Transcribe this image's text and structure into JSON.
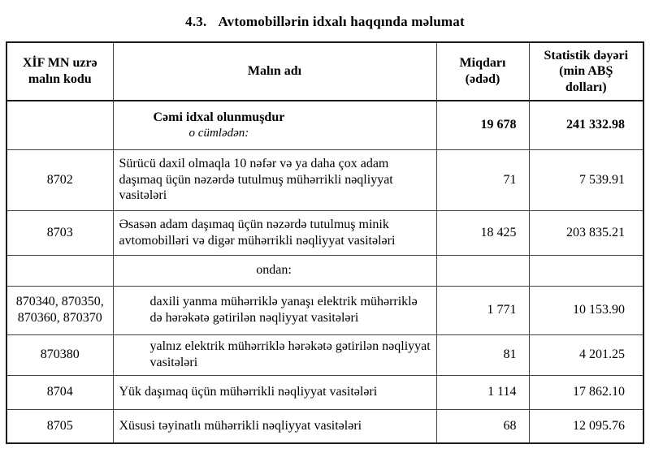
{
  "title": {
    "number": "4.3.",
    "text": "Avtomobillərin idxalı haqqında məlumat"
  },
  "colors": {
    "text": "#000000",
    "border_inner": "#434343",
    "border_outer": "#1a1a1a",
    "background": "#ffffff"
  },
  "table": {
    "headers": {
      "code": "XİF MN uzrə\nmalın kodu",
      "name": "Malın adı",
      "quantity": "Miqdarı\n(ədəd)",
      "value": "Statistik dəyəri\n(min ABŞ\ndolları)"
    },
    "rows": [
      {
        "code": "",
        "name": "Cəmi idxal olunmuşdur",
        "subname": "o cümlədən:",
        "quantity": "19 678",
        "value": "241 332.98"
      },
      {
        "code": "8702",
        "name": "Sürücü daxil olmaqla 10 nəfər və ya daha çox adam daşımaq üçün nəzərdə tutulmuş mühərrikli nəqliyyat vasitələri",
        "quantity": "71",
        "value": "7 539.91"
      },
      {
        "code": "8703",
        "name": "Əsasən adam daşımaq üçün nəzərdə tutulmuş minik avtomobilləri və digər mühərrikli nəqliyyat vasitələri",
        "quantity": "18 425",
        "value": "203 835.21"
      },
      {
        "code": "",
        "name": "ondan:",
        "quantity": "",
        "value": ""
      },
      {
        "code": "870340, 870350, 870360, 870370",
        "name": "daxili yanma mühərriklə yanaşı elektrik mühərriklə də hərəkətə gətirilən nəqliyyat vasitələri",
        "quantity": "1 771",
        "value": "10 153.90"
      },
      {
        "code": "870380",
        "name": "yalnız elektrik mühərriklə hərəkətə gətirilən nəqliyyat vasitələri",
        "quantity": "81",
        "value": "4 201.25"
      },
      {
        "code": "8704",
        "name": "Yük daşımaq üçün mühərrikli nəqliyyat vasitələri",
        "quantity": "1 114",
        "value": "17 862.10"
      },
      {
        "code": "8705",
        "name": "Xüsusi təyinatlı mühərrikli nəqliyyat vasitələri",
        "quantity": "68",
        "value": "12 095.76"
      }
    ]
  }
}
